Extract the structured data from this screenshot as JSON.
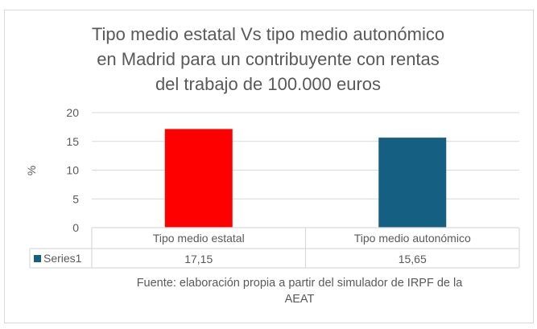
{
  "chart_data": {
    "type": "bar",
    "title_lines": [
      "Tipo medio estatal Vs tipo medio autonómico",
      "en Madrid para un contribuyente con rentas",
      "del trabajo de 100.000 euros"
    ],
    "categories": [
      "Tipo medio estatal",
      "Tipo medio autonómico"
    ],
    "series": [
      {
        "name": "Series1",
        "values": [
          17.15,
          15.65
        ],
        "value_labels": [
          "17,15",
          "15,65"
        ]
      }
    ],
    "bar_colors": [
      "#ff0000",
      "#156082"
    ],
    "legend_color": "#156082",
    "xlabel": "",
    "ylabel": "%",
    "ylim": [
      0,
      20
    ],
    "yticks": [
      0,
      5,
      10,
      15,
      20
    ],
    "grid": true,
    "data_table": true,
    "source_lines": [
      "Fuente: elaboración propia a partir del simulador de IRPF de la",
      "AEAT"
    ]
  }
}
